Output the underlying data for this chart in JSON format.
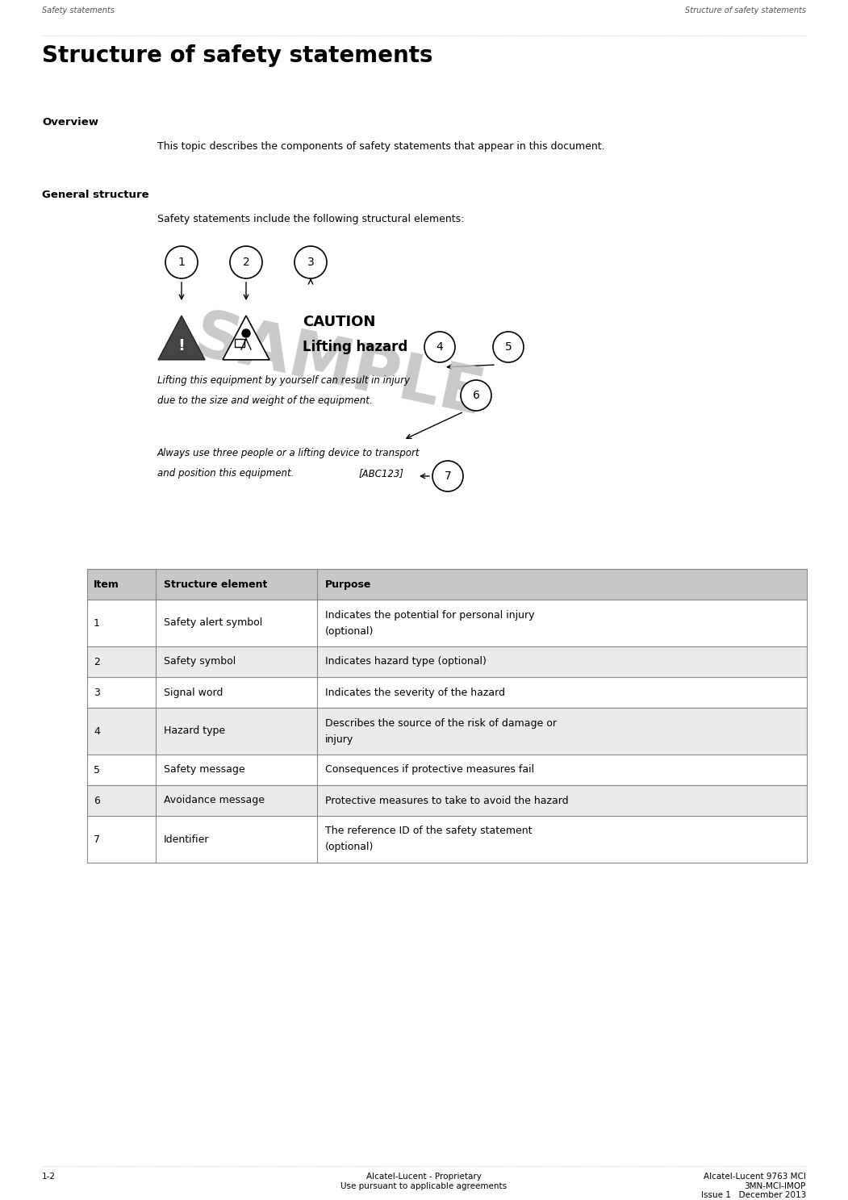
{
  "page_width": 10.51,
  "page_height": 14.87,
  "bg_color": "#ffffff",
  "header_left": "Safety statements",
  "header_right": "Structure of safety statements",
  "title": "Structure of safety statements",
  "overview_heading": "Overview",
  "overview_text": "This topic describes the components of safety statements that appear in this document.",
  "general_structure_heading": "General structure",
  "general_structure_text": "Safety statements include the following structural elements:",
  "table_headers": [
    "Item",
    "Structure element",
    "Purpose"
  ],
  "table_rows": [
    [
      "1",
      "Safety alert symbol",
      "Indicates the potential for personal injury\n(optional)"
    ],
    [
      "2",
      "Safety symbol",
      "Indicates hazard type (optional)"
    ],
    [
      "3",
      "Signal word",
      "Indicates the severity of the hazard"
    ],
    [
      "4",
      "Hazard type",
      "Describes the source of the risk of damage or\ninjury"
    ],
    [
      "5",
      "Safety message",
      "Consequences if protective measures fail"
    ],
    [
      "6",
      "Avoidance message",
      "Protective measures to take to avoid the hazard"
    ],
    [
      "7",
      "Identifier",
      "The reference ID of the safety statement\n(optional)"
    ]
  ],
  "footer_left": "1-2",
  "footer_center_line1": "Alcatel-Lucent - Proprietary",
  "footer_center_line2": "Use pursuant to applicable agreements",
  "footer_right_line1": "Alcatel-Lucent 9763 MCI",
  "footer_right_line2": "3MN-MCI-IMOP",
  "footer_right_line3": "Issue 1   December 2013",
  "sample_text": "SAMPLE",
  "caution_text": "CAUTION",
  "lifting_hazard_text": "Lifting hazard",
  "safety_msg_line1": "Lifting this equipment by yourself can result in injury",
  "safety_msg_line2": "due to the size and weight of the equipment.",
  "avoidance_msg_line1": "Always use three people or a lifting device to transport",
  "avoidance_msg_line2": "and position this equipment.",
  "identifier_text": "[ABC123]",
  "header_font_color": "#555555",
  "body_font_color": "#000000",
  "table_header_bg": "#c8c8c8",
  "table_row_bg_odd": "#ffffff",
  "table_row_bg_even": "#ebebeb",
  "table_border_color": "#888888",
  "dotted_line_color": "#aaaaaa",
  "sample_color": "#c0c0c0"
}
